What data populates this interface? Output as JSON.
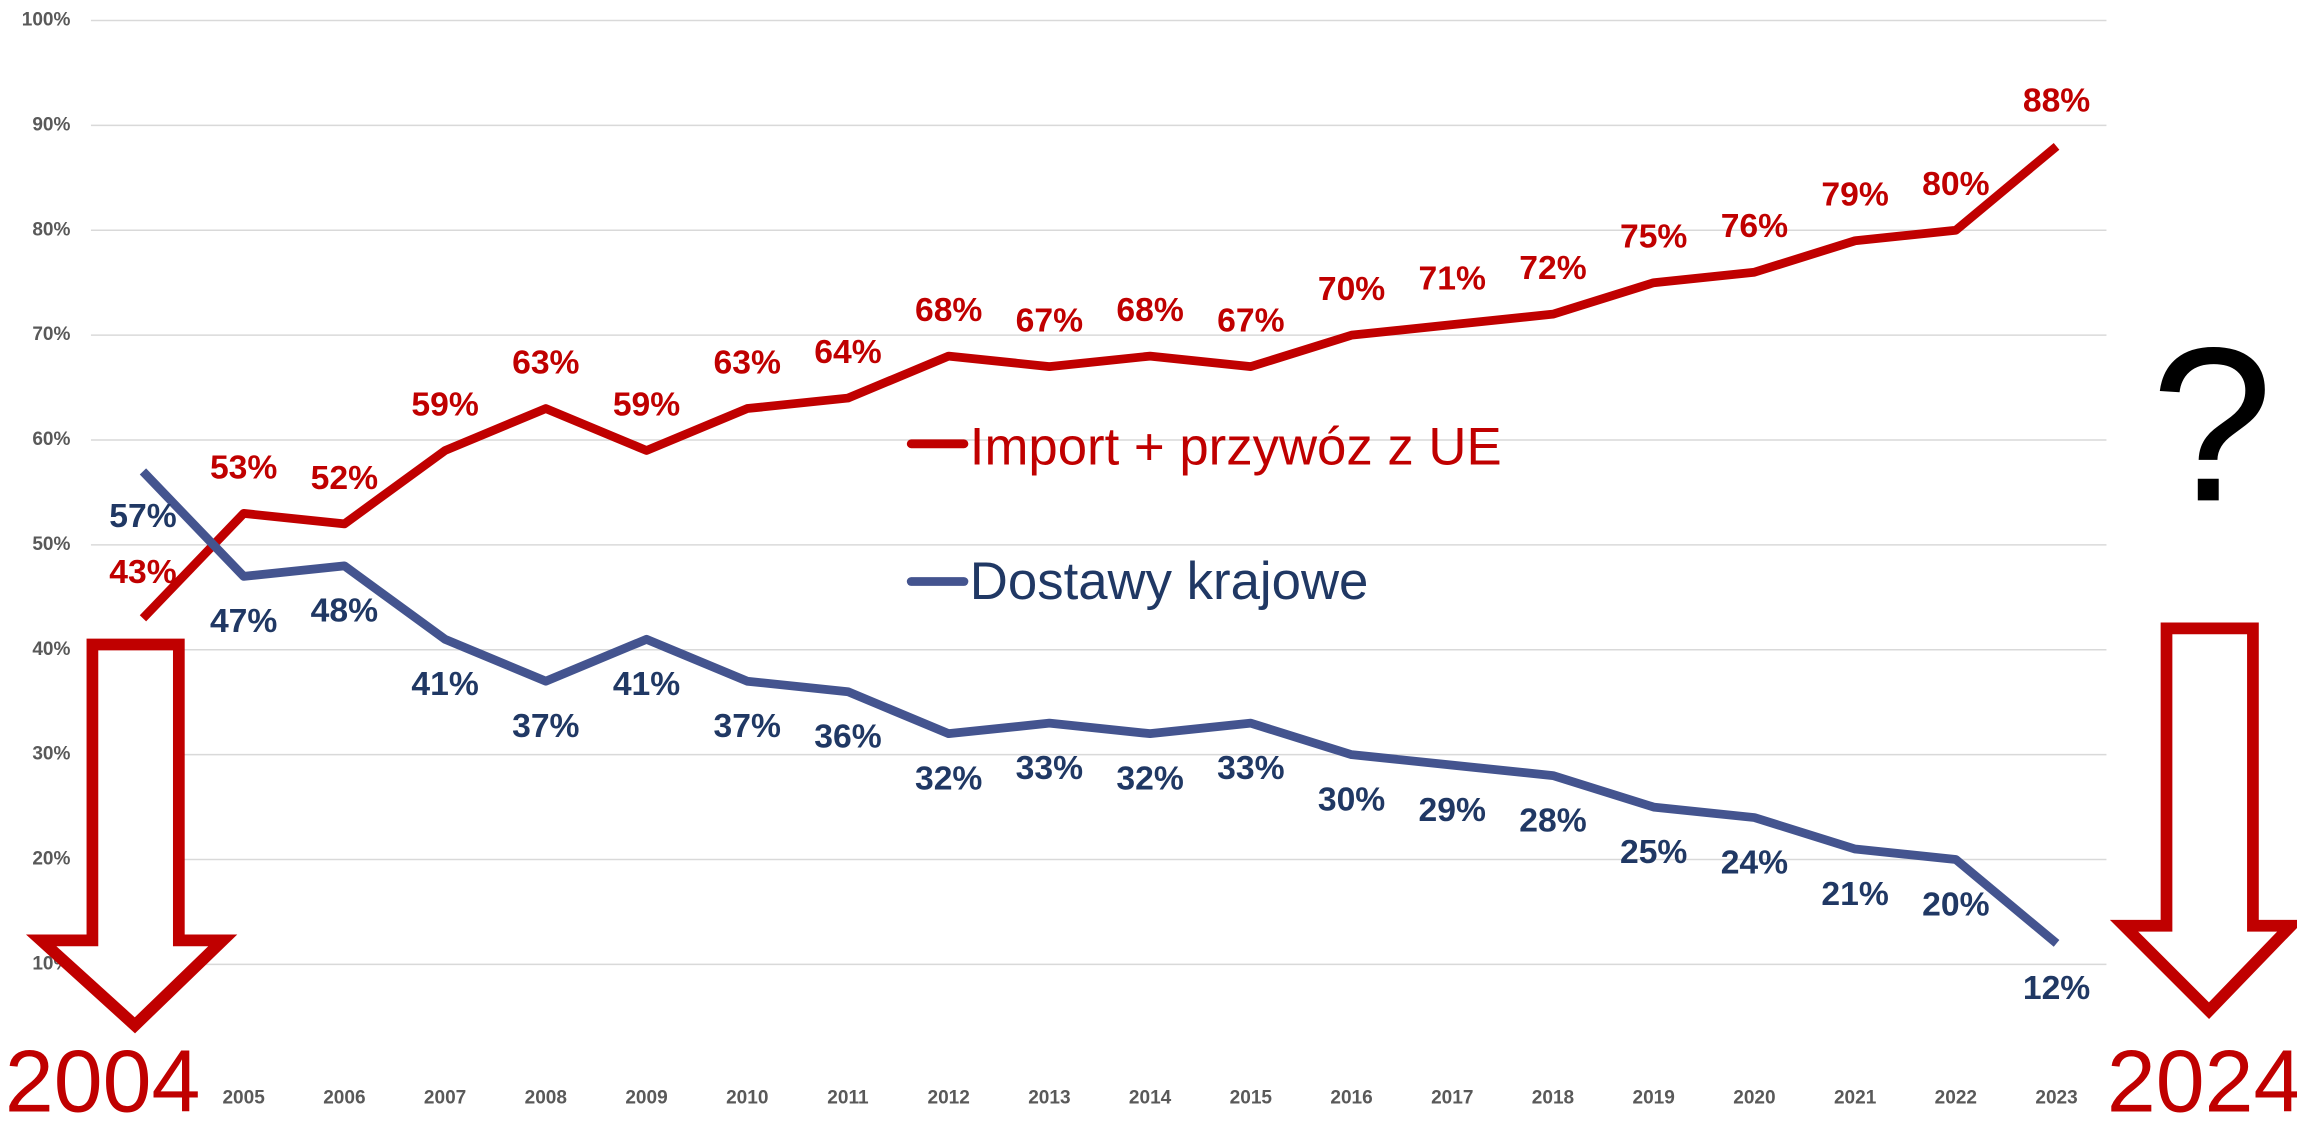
{
  "chart_data": {
    "type": "line",
    "categories": [
      null,
      "2005",
      "2006",
      "2007",
      "2008",
      "2009",
      "2010",
      "2011",
      "2012",
      "2013",
      "2014",
      "2015",
      "2016",
      "2017",
      "2018",
      "2019",
      "2020",
      "2021",
      "2022",
      "2023"
    ],
    "series": [
      {
        "name": "Import + przywóz z UE",
        "color": "#c00000",
        "values": [
          43,
          53,
          52,
          59,
          63,
          59,
          63,
          64,
          68,
          67,
          68,
          67,
          70,
          71,
          72,
          75,
          76,
          79,
          80,
          88
        ],
        "value_labels": [
          "43%",
          "53%",
          "52%",
          "59%",
          "63%",
          "59%",
          "63%",
          "64%",
          "68%",
          "67%",
          "68%",
          "67%",
          "70%",
          "71%",
          "72%",
          "75%",
          "76%",
          "79%",
          "80%",
          "88%"
        ]
      },
      {
        "name": "Dostawy krajowe",
        "color": "#44548f",
        "values": [
          57,
          47,
          48,
          41,
          37,
          41,
          37,
          36,
          32,
          33,
          32,
          33,
          30,
          29,
          28,
          25,
          24,
          21,
          20,
          12
        ],
        "value_labels": [
          "57%",
          "47%",
          "48%",
          "41%",
          "37%",
          "41%",
          "37%",
          "36%",
          "32%",
          "33%",
          "32%",
          "33%",
          "30%",
          "29%",
          "28%",
          "25%",
          "24%",
          "21%",
          "20%",
          "12%"
        ]
      }
    ],
    "ylim": [
      0,
      100
    ],
    "yticks": [
      {
        "value": 10,
        "label": "10%"
      },
      {
        "value": 20,
        "label": "20%"
      },
      {
        "value": 30,
        "label": "30%"
      },
      {
        "value": 40,
        "label": "40%"
      },
      {
        "value": 50,
        "label": "50%"
      },
      {
        "value": 60,
        "label": "60%"
      },
      {
        "value": 70,
        "label": "70%"
      },
      {
        "value": 80,
        "label": "80%"
      },
      {
        "value": 90,
        "label": "90%"
      },
      {
        "value": 100,
        "label": "100%"
      }
    ],
    "grid": true,
    "annotations": [
      "2004",
      "2024",
      "?"
    ]
  }
}
